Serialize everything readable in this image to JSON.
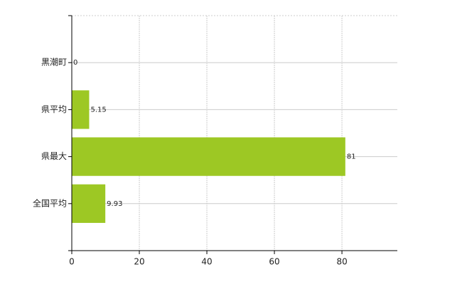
{
  "chart_data": {
    "type": "bar",
    "orientation": "horizontal",
    "categories": [
      "黒潮町",
      "県平均",
      "県最大",
      "全国平均"
    ],
    "values": [
      0,
      5.15,
      81,
      9.93
    ],
    "color": "#9dc824",
    "xlim": [
      0,
      96.4
    ],
    "xticks": [
      0,
      20,
      40,
      60,
      80
    ],
    "grid": true
  }
}
